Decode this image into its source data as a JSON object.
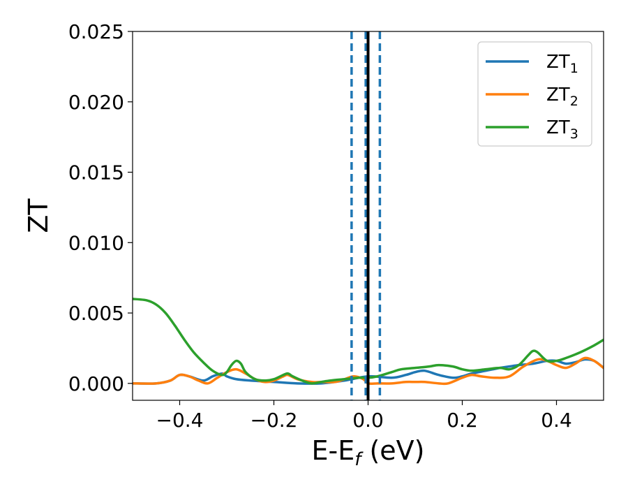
{
  "chart_data": {
    "type": "line",
    "xlabel": {
      "prefix": "E-E",
      "subscript": "f",
      "suffix": " (eV)"
    },
    "ylabel": "ZT",
    "xlim": [
      -0.5,
      0.5
    ],
    "ylim": [
      -0.0012,
      0.025
    ],
    "xticks": [
      -0.4,
      -0.2,
      0.0,
      0.2,
      0.4
    ],
    "xtick_labels": [
      "−0.4",
      "−0.2",
      "0.0",
      "0.2",
      "0.4"
    ],
    "yticks": [
      0.0,
      0.005,
      0.01,
      0.015,
      0.02,
      0.025
    ],
    "ytick_labels": [
      "0.000",
      "0.005",
      "0.010",
      "0.015",
      "0.020",
      "0.025"
    ],
    "grid": false,
    "legend_position": "top-right",
    "series": [
      {
        "name": "ZT",
        "subscript": "1",
        "color": "#1f77b4",
        "x": [
          -0.5,
          -0.45,
          -0.42,
          -0.4,
          -0.38,
          -0.35,
          -0.33,
          -0.31,
          -0.3,
          -0.28,
          -0.25,
          -0.2,
          -0.15,
          -0.1,
          -0.05,
          0.0,
          0.05,
          0.08,
          0.1,
          0.12,
          0.15,
          0.18,
          0.2,
          0.22,
          0.25,
          0.28,
          0.3,
          0.32,
          0.35,
          0.38,
          0.4,
          0.42,
          0.44,
          0.46,
          0.48,
          0.5
        ],
        "y": [
          0.0,
          0.0,
          0.0002,
          0.0006,
          0.0005,
          0.0002,
          0.0005,
          0.0007,
          0.0005,
          0.0003,
          0.0002,
          0.0001,
          0.0,
          0.0,
          0.0002,
          0.0005,
          0.0004,
          0.0006,
          0.0008,
          0.0009,
          0.0006,
          0.0004,
          0.0005,
          0.0007,
          0.0009,
          0.0011,
          0.0012,
          0.0013,
          0.0014,
          0.0016,
          0.0016,
          0.0014,
          0.0015,
          0.0017,
          0.0016,
          0.0011
        ]
      },
      {
        "name": "ZT",
        "subscript": "2",
        "color": "#ff7f0e",
        "x": [
          -0.5,
          -0.45,
          -0.42,
          -0.4,
          -0.38,
          -0.36,
          -0.34,
          -0.32,
          -0.3,
          -0.28,
          -0.26,
          -0.24,
          -0.22,
          -0.2,
          -0.18,
          -0.17,
          -0.15,
          -0.12,
          -0.1,
          -0.07,
          -0.05,
          -0.03,
          -0.01,
          0.0,
          0.02,
          0.05,
          0.08,
          0.1,
          0.12,
          0.15,
          0.17,
          0.2,
          0.22,
          0.24,
          0.27,
          0.3,
          0.33,
          0.36,
          0.38,
          0.4,
          0.42,
          0.44,
          0.46,
          0.48,
          0.5
        ],
        "y": [
          0.0,
          0.0,
          0.0002,
          0.0006,
          0.0005,
          0.0002,
          0.0,
          0.0004,
          0.0008,
          0.001,
          0.0007,
          0.0003,
          0.0001,
          0.0002,
          0.0005,
          0.0006,
          0.0003,
          0.0001,
          0.0001,
          0.0001,
          0.0003,
          0.0005,
          0.0003,
          0.0,
          0.0,
          0.0,
          0.0001,
          0.0001,
          0.0001,
          0.0,
          0.0,
          0.0004,
          0.0006,
          0.0005,
          0.0004,
          0.0005,
          0.0012,
          0.0017,
          0.0016,
          0.0013,
          0.0011,
          0.0014,
          0.0018,
          0.0016,
          0.0011
        ]
      },
      {
        "name": "ZT",
        "subscript": "3",
        "color": "#2ca02c",
        "x": [
          -0.5,
          -0.47,
          -0.45,
          -0.43,
          -0.41,
          -0.39,
          -0.37,
          -0.35,
          -0.33,
          -0.31,
          -0.3,
          -0.29,
          -0.28,
          -0.27,
          -0.26,
          -0.24,
          -0.22,
          -0.2,
          -0.18,
          -0.17,
          -0.16,
          -0.14,
          -0.12,
          -0.1,
          -0.08,
          -0.05,
          -0.02,
          0.0,
          0.02,
          0.05,
          0.07,
          0.1,
          0.13,
          0.15,
          0.18,
          0.2,
          0.22,
          0.25,
          0.28,
          0.3,
          0.32,
          0.34,
          0.35,
          0.36,
          0.38,
          0.4,
          0.42,
          0.45,
          0.48,
          0.5
        ],
        "y": [
          0.006,
          0.0059,
          0.0056,
          0.005,
          0.0041,
          0.0031,
          0.0022,
          0.0015,
          0.0009,
          0.0006,
          0.0008,
          0.0013,
          0.0016,
          0.0014,
          0.0008,
          0.0003,
          0.0002,
          0.0003,
          0.0006,
          0.0007,
          0.0005,
          0.0002,
          0.0,
          0.0001,
          0.0002,
          0.0003,
          0.0004,
          0.0004,
          0.0005,
          0.0008,
          0.001,
          0.0011,
          0.0012,
          0.0013,
          0.0012,
          0.001,
          0.0009,
          0.001,
          0.0011,
          0.001,
          0.0013,
          0.002,
          0.0023,
          0.0022,
          0.0016,
          0.0016,
          0.0018,
          0.0022,
          0.0027,
          0.0031
        ]
      }
    ],
    "vertical_lines": [
      {
        "x": -0.035,
        "style": "dashed",
        "color": "#1f77b4"
      },
      {
        "x": -0.005,
        "style": "dashed",
        "color": "#1f77b4"
      },
      {
        "x": 0.025,
        "style": "dashed",
        "color": "#1f77b4"
      },
      {
        "x": 0.0,
        "style": "solid",
        "color": "#000000"
      }
    ]
  }
}
